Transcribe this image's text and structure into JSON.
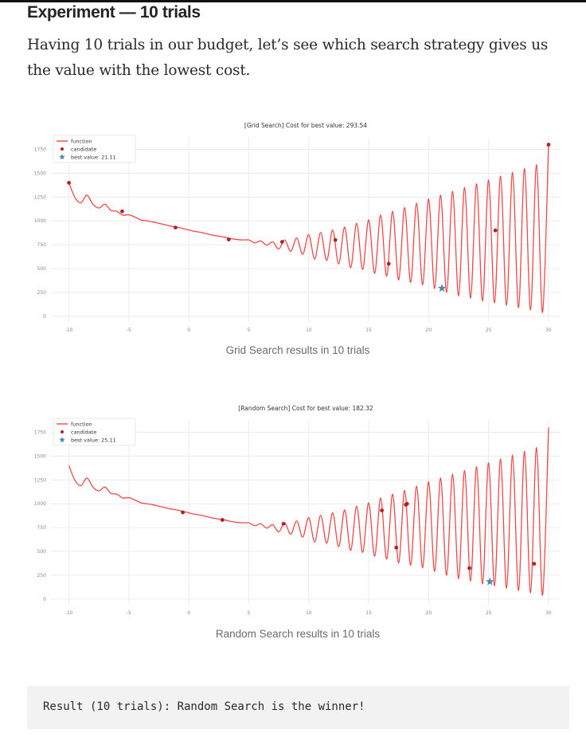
{
  "article": {
    "heading": "Experiment — 10 trials",
    "paragraph": "Having 10 trials in our budget, let’s see which search strategy gives us the value with the lowest cost."
  },
  "charts": [
    {
      "caption": "Grid Search results in 10 trials"
    },
    {
      "caption": "Random Search results in 10 trials"
    }
  ],
  "code_block": {
    "text": "Result (10 trials): Random Search is the winner!"
  },
  "chart_data": [
    {
      "type": "line",
      "title": "[Grid Search] Cost for best value: 293.54",
      "xlabel": "",
      "ylabel": "",
      "xlim": [
        -11.5,
        31
      ],
      "ylim": [
        -60,
        1880
      ],
      "xticks": [
        -10,
        -5,
        0,
        5,
        10,
        15,
        20,
        25,
        30
      ],
      "yticks": [
        0,
        250,
        500,
        750,
        1000,
        1250,
        1500,
        1750
      ],
      "legend": [
        "function",
        "candidate",
        "best value: 21.11"
      ],
      "legend_position": "top-left",
      "grid": true,
      "colors": {
        "function": "#f04848",
        "candidate": "#b22222",
        "best": "#4a86b8"
      },
      "series": [
        {
          "name": "function",
          "x": [
            -10,
            -9.5,
            -9,
            -8.5,
            -8,
            -7.5,
            -7,
            -6.5,
            -6,
            -5.5,
            -5,
            -4.5,
            -4,
            -3.5,
            -3,
            -2.5,
            -2,
            -1.5,
            -1,
            -0.5,
            0,
            0.5,
            1,
            1.5,
            2,
            2.5,
            3,
            3.5,
            4,
            4.5,
            5,
            5.5,
            6,
            6.5,
            7,
            7.5,
            8,
            8.5,
            9,
            9.5,
            10,
            10.5,
            11,
            11.5,
            12,
            12.5,
            13,
            13.5,
            14,
            14.5,
            15,
            15.5,
            16,
            16.5,
            17,
            17.5,
            18,
            18.5,
            19,
            19.5,
            20,
            20.5,
            21,
            21.5,
            22,
            22.5,
            23,
            23.5,
            24,
            24.5,
            25,
            25.5,
            26,
            26.5,
            27,
            27.5,
            28,
            28.5,
            29,
            29.5,
            30
          ],
          "y": [
            1400,
            1245,
            1190,
            1270,
            1175,
            1135,
            1175,
            1110,
            1100,
            1060,
            1065,
            1040,
            1010,
            1000,
            990,
            975,
            960,
            945,
            935,
            920,
            905,
            890,
            880,
            865,
            850,
            840,
            830,
            815,
            805,
            800,
            800,
            770,
            790,
            745,
            780,
            705,
            800,
            680,
            820,
            650,
            855,
            600,
            880,
            585,
            905,
            550,
            935,
            510,
            975,
            490,
            1010,
            450,
            1060,
            420,
            1100,
            380,
            1140,
            355,
            1185,
            330,
            1230,
            290,
            1270,
            250,
            1310,
            215,
            1350,
            190,
            1390,
            160,
            1430,
            140,
            1470,
            115,
            1510,
            90,
            1550,
            65,
            1590,
            40,
            1800
          ]
        },
        {
          "name": "candidate",
          "x": [
            -10,
            -5.56,
            -1.11,
            3.33,
            7.78,
            12.22,
            16.67,
            25.56,
            30
          ],
          "y": [
            1400,
            1100,
            930,
            805,
            780,
            800,
            550,
            900,
            1800
          ]
        },
        {
          "name": "best value: 21.11",
          "x": [
            21.11
          ],
          "y": [
            293.54
          ]
        }
      ]
    },
    {
      "type": "line",
      "title": "[Random Search] Cost for best value: 182.32",
      "xlabel": "",
      "ylabel": "",
      "xlim": [
        -11.5,
        31
      ],
      "ylim": [
        -60,
        1880
      ],
      "xticks": [
        -10,
        -5,
        0,
        5,
        10,
        15,
        20,
        25,
        30
      ],
      "yticks": [
        0,
        250,
        500,
        750,
        1000,
        1250,
        1500,
        1750
      ],
      "legend": [
        "function",
        "candidate",
        "best value: 25.11"
      ],
      "legend_position": "top-left",
      "grid": true,
      "colors": {
        "function": "#f04848",
        "candidate": "#b22222",
        "best": "#4a86b8"
      },
      "series": [
        {
          "name": "function",
          "x": [
            -10,
            -9.5,
            -9,
            -8.5,
            -8,
            -7.5,
            -7,
            -6.5,
            -6,
            -5.5,
            -5,
            -4.5,
            -4,
            -3.5,
            -3,
            -2.5,
            -2,
            -1.5,
            -1,
            -0.5,
            0,
            0.5,
            1,
            1.5,
            2,
            2.5,
            3,
            3.5,
            4,
            4.5,
            5,
            5.5,
            6,
            6.5,
            7,
            7.5,
            8,
            8.5,
            9,
            9.5,
            10,
            10.5,
            11,
            11.5,
            12,
            12.5,
            13,
            13.5,
            14,
            14.5,
            15,
            15.5,
            16,
            16.5,
            17,
            17.5,
            18,
            18.5,
            19,
            19.5,
            20,
            20.5,
            21,
            21.5,
            22,
            22.5,
            23,
            23.5,
            24,
            24.5,
            25,
            25.5,
            26,
            26.5,
            27,
            27.5,
            28,
            28.5,
            29,
            29.5,
            30
          ],
          "y": [
            1400,
            1245,
            1190,
            1270,
            1175,
            1135,
            1175,
            1110,
            1100,
            1060,
            1065,
            1040,
            1010,
            1000,
            990,
            975,
            960,
            945,
            935,
            920,
            905,
            890,
            880,
            865,
            850,
            840,
            830,
            815,
            805,
            800,
            800,
            770,
            790,
            745,
            780,
            705,
            800,
            680,
            820,
            650,
            855,
            600,
            880,
            585,
            905,
            550,
            935,
            510,
            975,
            490,
            1010,
            450,
            1060,
            420,
            1100,
            380,
            1140,
            355,
            1185,
            330,
            1230,
            290,
            1270,
            250,
            1310,
            215,
            1350,
            190,
            1390,
            160,
            1430,
            140,
            1470,
            115,
            1510,
            90,
            1550,
            65,
            1590,
            40,
            1800
          ]
        },
        {
          "name": "candidate",
          "x": [
            -0.5,
            2.8,
            7.9,
            16.1,
            17.3,
            18.1,
            18.2,
            23.4,
            28.8
          ],
          "y": [
            910,
            830,
            790,
            930,
            540,
            990,
            1000,
            325,
            370
          ]
        },
        {
          "name": "best value: 25.11",
          "x": [
            25.11
          ],
          "y": [
            182.32
          ]
        }
      ]
    }
  ]
}
